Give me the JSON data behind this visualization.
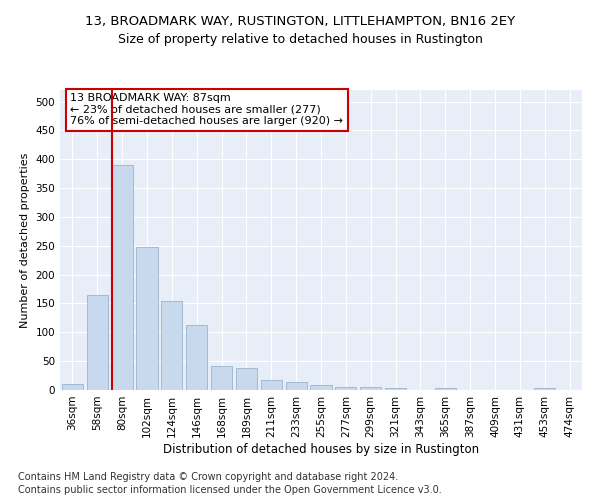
{
  "title1": "13, BROADMARK WAY, RUSTINGTON, LITTLEHAMPTON, BN16 2EY",
  "title2": "Size of property relative to detached houses in Rustington",
  "xlabel": "Distribution of detached houses by size in Rustington",
  "ylabel": "Number of detached properties",
  "categories": [
    "36sqm",
    "58sqm",
    "80sqm",
    "102sqm",
    "124sqm",
    "146sqm",
    "168sqm",
    "189sqm",
    "211sqm",
    "233sqm",
    "255sqm",
    "277sqm",
    "299sqm",
    "321sqm",
    "343sqm",
    "365sqm",
    "387sqm",
    "409sqm",
    "431sqm",
    "453sqm",
    "474sqm"
  ],
  "values": [
    10,
    165,
    390,
    248,
    155,
    113,
    42,
    38,
    17,
    14,
    8,
    6,
    5,
    3,
    0,
    3,
    0,
    0,
    0,
    3,
    0
  ],
  "bar_color": "#c8d9ee",
  "bar_edge_color": "#9ab3d0",
  "red_line_index": 2,
  "annotation_line1": "13 BROADMARK WAY: 87sqm",
  "annotation_line2": "← 23% of detached houses are smaller (277)",
  "annotation_line3": "76% of semi-detached houses are larger (920) →",
  "annotation_box_color": "#cc0000",
  "ylim": [
    0,
    520
  ],
  "yticks": [
    0,
    50,
    100,
    150,
    200,
    250,
    300,
    350,
    400,
    450,
    500
  ],
  "footnote1": "Contains HM Land Registry data © Crown copyright and database right 2024.",
  "footnote2": "Contains public sector information licensed under the Open Government Licence v3.0.",
  "bg_color": "#e8eef8",
  "grid_color": "#ffffff",
  "title1_fontsize": 9.5,
  "title2_fontsize": 9,
  "xlabel_fontsize": 8.5,
  "ylabel_fontsize": 8,
  "tick_fontsize": 7.5,
  "annotation_fontsize": 8,
  "footnote_fontsize": 7
}
